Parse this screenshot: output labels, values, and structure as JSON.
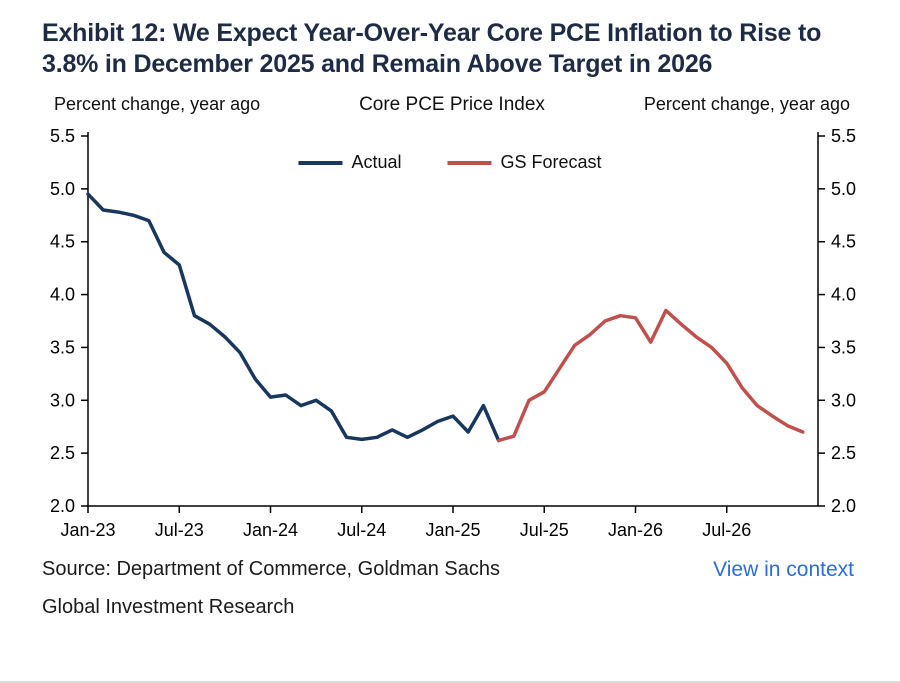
{
  "header": {
    "title": "Exhibit 12: We Expect Year-Over-Year Core PCE Inflation to Rise to 3.8% in December 2025 and Remain Above Target in 2026"
  },
  "chart": {
    "axis_label_left": "Percent change, year ago",
    "axis_label_right": "Percent change, year ago",
    "title": "Core PCE Price Index"
  },
  "chart_data": {
    "type": "line",
    "title": "Core PCE Price Index",
    "ylabel": "Percent change, year ago",
    "ylim": [
      2.0,
      5.5
    ],
    "yticks": [
      2.0,
      2.5,
      3.0,
      3.5,
      4.0,
      4.5,
      5.0,
      5.5
    ],
    "grid": false,
    "legend_position": "top-center",
    "x_domain_months": [
      0,
      48
    ],
    "x_tick_months": [
      0,
      6,
      12,
      18,
      24,
      30,
      36,
      42
    ],
    "x_tick_labels": [
      "Jan-23",
      "Jul-23",
      "Jan-24",
      "Jul-24",
      "Jan-25",
      "Jul-25",
      "Jan-26",
      "Jul-26"
    ],
    "series": [
      {
        "name": "Actual",
        "color": "#17375e",
        "x_start_month": 0,
        "values": [
          4.95,
          4.8,
          4.78,
          4.75,
          4.7,
          4.4,
          4.28,
          3.8,
          3.72,
          3.6,
          3.45,
          3.2,
          3.03,
          3.05,
          2.95,
          3.0,
          2.9,
          2.65,
          2.63,
          2.65,
          2.72,
          2.65,
          2.72,
          2.8,
          2.85,
          2.7,
          2.95,
          2.62
        ]
      },
      {
        "name": "GS Forecast",
        "color": "#c0504d",
        "x_start_month": 27,
        "values": [
          2.62,
          2.66,
          3.0,
          3.08,
          3.3,
          3.52,
          3.62,
          3.75,
          3.8,
          3.78,
          3.55,
          3.85,
          3.72,
          3.6,
          3.5,
          3.35,
          3.12,
          2.95,
          2.85,
          2.76,
          2.7
        ]
      }
    ]
  },
  "footer": {
    "source": "Source: Department of Commerce, Goldman Sachs",
    "research": "Global Investment Research",
    "link_label": "View in context"
  },
  "colors": {
    "title": "#1e2b45",
    "actual_line": "#17375e",
    "forecast_line": "#c0504d",
    "link": "#2b6dd6",
    "axis": "#000000",
    "text": "#111111"
  }
}
